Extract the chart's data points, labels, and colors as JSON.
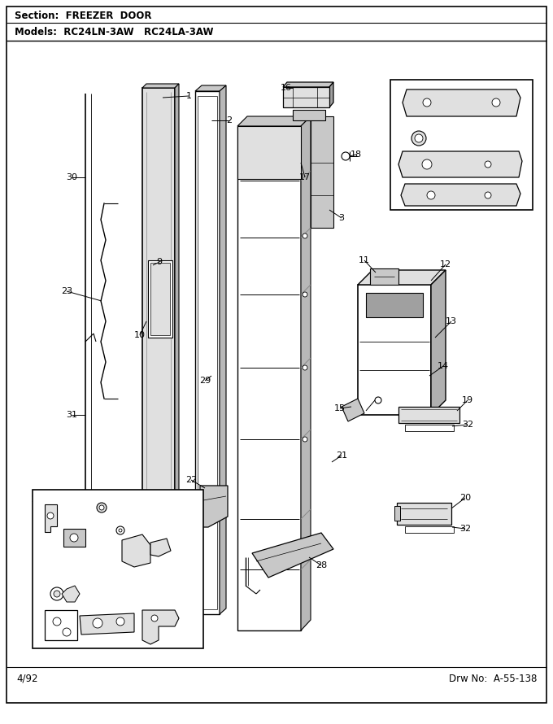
{
  "section_label": "Section:  FREEZER  DOOR",
  "models_label": "Models:  RC24LN-3AW   RC24LA-3AW",
  "date_label": "4/92",
  "drw_label": "Drw No:  A-55-138",
  "bg_color": "#ffffff",
  "line_color": "#000000",
  "text_color": "#000000",
  "gray_fill": "#c8c8c8",
  "light_gray": "#e0e0e0",
  "dark_gray": "#909090"
}
